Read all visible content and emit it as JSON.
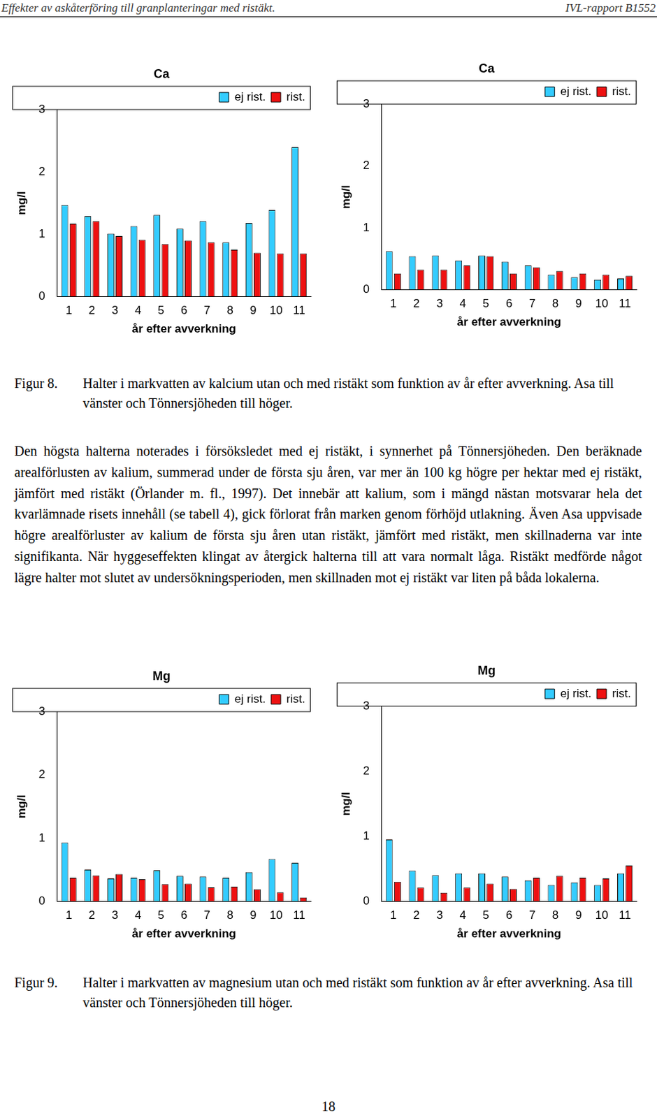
{
  "header": {
    "left": "Effekter av askåterföring till granplanteringar med ristäkt.",
    "right": "IVL-rapport B1552"
  },
  "chart_data": [
    {
      "type": "bar",
      "title": "Ca",
      "x_label": "år efter avverkning",
      "y_label": "mg/l",
      "categories": [
        "1",
        "2",
        "3",
        "4",
        "5",
        "6",
        "7",
        "8",
        "9",
        "10",
        "11"
      ],
      "series": [
        {
          "name": "ej rist.",
          "color": "#33ccff",
          "values": [
            1.47,
            1.29,
            1.01,
            1.13,
            1.31,
            1.09,
            1.21,
            0.87,
            1.18,
            1.39,
            2.4
          ]
        },
        {
          "name": "rist.",
          "color": "#ee1111",
          "values": [
            1.17,
            1.21,
            0.97,
            0.91,
            0.84,
            0.9,
            0.87,
            0.75,
            0.7,
            0.69,
            0.69
          ]
        }
      ],
      "ylim": [
        0,
        3
      ],
      "yticks": [
        0,
        1,
        2,
        3
      ],
      "grid": false,
      "legend": "upper right"
    },
    {
      "type": "bar",
      "title": "Ca",
      "x_label": "år efter avverkning",
      "y_label": "mg/l",
      "categories": [
        "1",
        "2",
        "3",
        "4",
        "5",
        "6",
        "7",
        "8",
        "9",
        "10",
        "11"
      ],
      "series": [
        {
          "name": "ej rist.",
          "color": "#33ccff",
          "values": [
            0.62,
            0.54,
            0.55,
            0.47,
            0.55,
            0.45,
            0.39,
            0.24,
            0.2,
            0.16,
            0.18
          ]
        },
        {
          "name": "rist.",
          "color": "#ee1111",
          "values": [
            0.26,
            0.32,
            0.32,
            0.39,
            0.54,
            0.26,
            0.36,
            0.3,
            0.26,
            0.24,
            0.22
          ]
        }
      ],
      "ylim": [
        0,
        3
      ],
      "yticks": [
        0,
        1,
        2,
        3
      ],
      "grid": false,
      "legend": "upper right"
    },
    {
      "type": "bar",
      "title": "Mg",
      "x_label": "år efter avverkning",
      "y_label": "mg/l",
      "categories": [
        "1",
        "2",
        "3",
        "4",
        "5",
        "6",
        "7",
        "8",
        "9",
        "10",
        "11"
      ],
      "series": [
        {
          "name": "ej rist.",
          "color": "#33ccff",
          "values": [
            0.93,
            0.5,
            0.36,
            0.37,
            0.49,
            0.4,
            0.39,
            0.37,
            0.46,
            0.67,
            0.61
          ]
        },
        {
          "name": "rist.",
          "color": "#ee1111",
          "values": [
            0.37,
            0.41,
            0.43,
            0.35,
            0.27,
            0.28,
            0.22,
            0.23,
            0.19,
            0.14,
            0.06
          ]
        }
      ],
      "ylim": [
        0,
        3
      ],
      "yticks": [
        0,
        1,
        2,
        3
      ],
      "grid": false,
      "legend": "upper right"
    },
    {
      "type": "bar",
      "title": "Mg",
      "x_label": "år efter avverkning",
      "y_label": "mg/l",
      "categories": [
        "1",
        "2",
        "3",
        "4",
        "5",
        "6",
        "7",
        "8",
        "9",
        "10",
        "11"
      ],
      "series": [
        {
          "name": "ej rist.",
          "color": "#33ccff",
          "values": [
            0.95,
            0.47,
            0.4,
            0.43,
            0.43,
            0.38,
            0.32,
            0.25,
            0.29,
            0.25,
            0.43
          ]
        },
        {
          "name": "rist.",
          "color": "#ee1111",
          "values": [
            0.3,
            0.21,
            0.13,
            0.21,
            0.27,
            0.19,
            0.36,
            0.39,
            0.36,
            0.35,
            0.55
          ]
        }
      ],
      "ylim": [
        0,
        3
      ],
      "yticks": [
        0,
        1,
        2,
        3
      ],
      "grid": false,
      "legend": "upper right"
    }
  ],
  "figures": [
    {
      "label": "Figur 8.",
      "caption": "Halter i markvatten av kalcium utan och med ristäkt som funktion av år efter avverkning. Asa till vänster och Tönnersjöheden till höger."
    },
    {
      "label": "Figur 9.",
      "caption": "Halter i markvatten av magnesium utan och med ristäkt som funktion av år efter avverkning. Asa till vänster och Tönnersjöheden till höger."
    }
  ],
  "paragraph": "Den högsta halterna noterades i försöksledet med ej ristäkt, i synnerhet på Tönnersjöheden. Den beräknade arealförlusten av kalium, summerad under de första sju åren, var mer än 100 kg högre per hektar med ej ristäkt, jämfört med ristäkt (Örlander m. fl., 1997). Det innebär att kalium, som i mängd nästan motsvarar hela det kvarlämnade risets innehåll (se tabell 4), gick förlorat från marken genom förhöjd utlakning. Även Asa uppvisade högre arealförluster av kalium de första sju åren utan ristäkt, jämfört med ristäkt, men skillnaderna var inte signifikanta. När hyggeseffekten klingat av återgick halterna till att vara normalt låga. Ristäkt medförde något lägre halter mot slutet av undersökningsperioden, men skillnaden mot ej ristäkt var liten på båda lokalerna.",
  "page_number": "18"
}
